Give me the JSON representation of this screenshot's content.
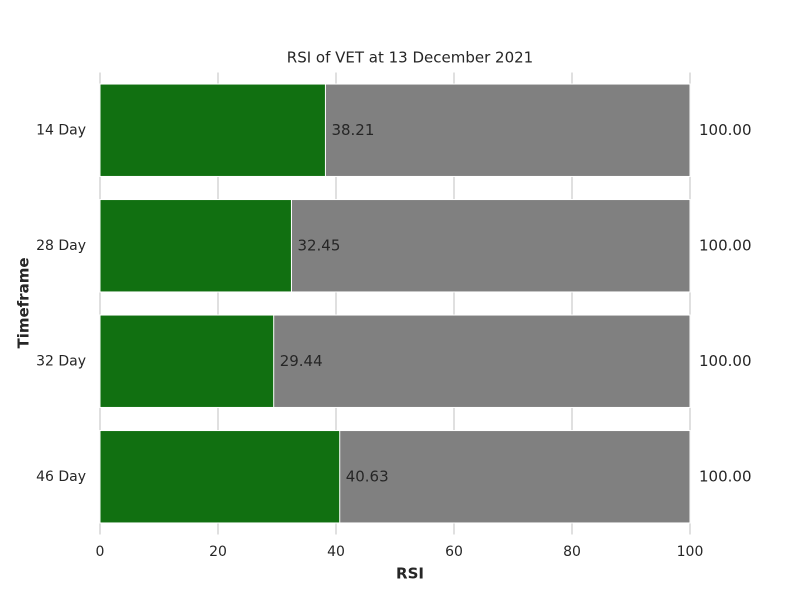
{
  "chart_data": {
    "type": "bar",
    "orientation": "horizontal",
    "title": "RSI of VET at 13 December 2021",
    "x_label": "RSI",
    "y_label": "Timeframe",
    "categories": [
      "14 Day",
      "28 Day",
      "32 Day",
      "46 Day"
    ],
    "series": [
      {
        "color": "#808080",
        "values": [
          100,
          100,
          100,
          100
        ],
        "value_labels": [
          "100.00",
          "100.00",
          "100.00",
          "100.00"
        ]
      },
      {
        "color": "#117011",
        "values": [
          38.21,
          32.45,
          29.44,
          40.63
        ]
      }
    ],
    "xlim": [
      0,
      100
    ],
    "xticks": [
      0,
      20,
      40,
      60,
      80,
      100
    ],
    "grid": true
  }
}
